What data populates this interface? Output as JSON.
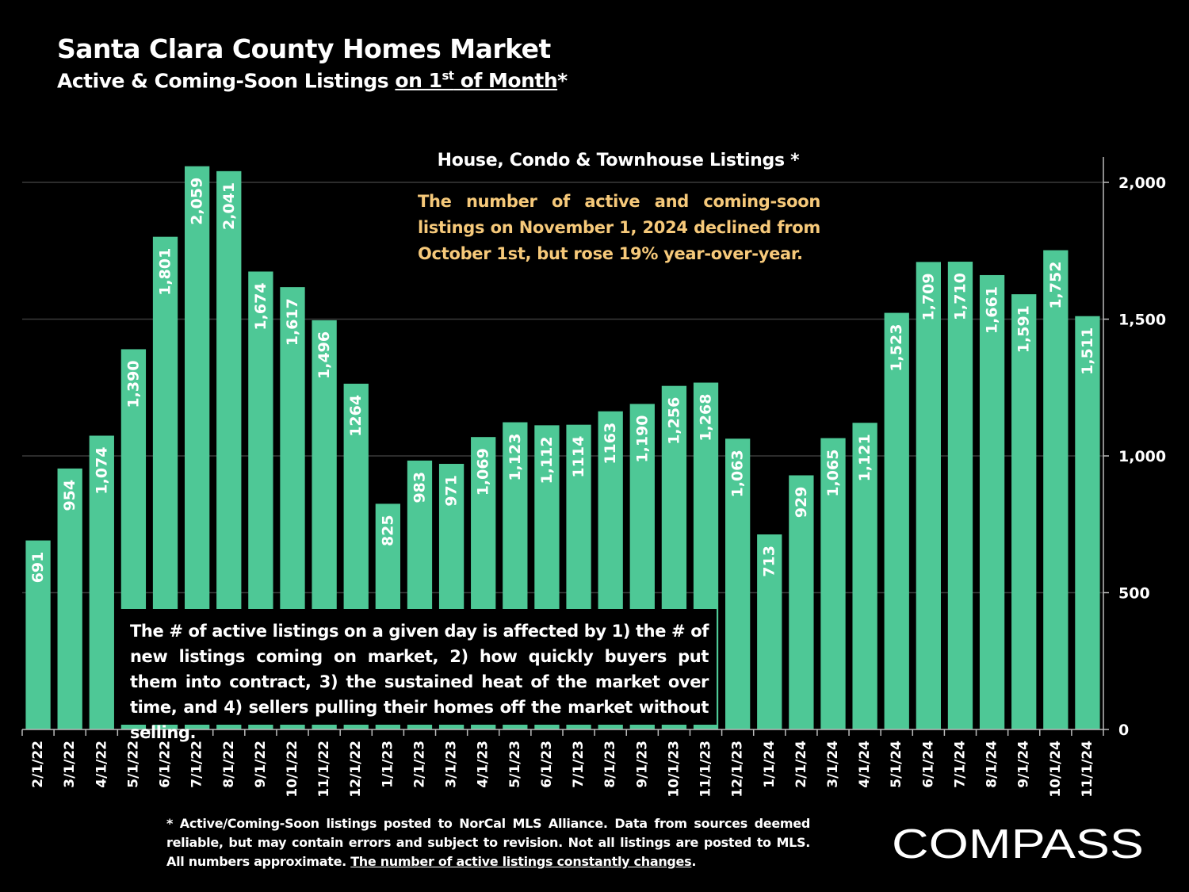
{
  "header": {
    "title": "Santa Clara County Homes Market",
    "subtitle_prefix": "Active & Coming-Soon Listings ",
    "subtitle_underlined_a": "on 1",
    "subtitle_sup": "st",
    "subtitle_underlined_b": " of Month",
    "subtitle_suffix": "*"
  },
  "annotations": {
    "top_note": "The number of active and coming-soon listings on November 1, 2024 declined from October 1st, but rose 19% year-over-year.",
    "box_note": "The # of active listings on a given day is affected by 1) the # of new listings coming on market, 2) how quickly buyers put them into contract, 3) the sustained heat of the market over time, and 4) sellers pulling their homes off the market without selling."
  },
  "footnote": {
    "text": "* Active/Coming-Soon listings posted to NorCal MLS Alliance.  Data from sources deemed reliable, but may contain errors and subject to revision.  Not all listings are posted to MLS. All numbers approximate. ",
    "underlined": "The number of active listings constantly changes",
    "end": "."
  },
  "logo": {
    "text": "COMPASS",
    "icon": "compass-o-icon"
  },
  "colors": {
    "bar": "#4ec896",
    "grid": "#3a3a3a",
    "background": "#000000",
    "note": "#f6c97a",
    "text": "#ffffff"
  },
  "chart_data": {
    "type": "bar",
    "title": "House, Condo & Townhouse Listings *",
    "xlabel": "",
    "ylabel": "",
    "ylim": [
      0,
      2000
    ],
    "y_ticks": [
      0,
      500,
      1000,
      1500,
      2000
    ],
    "y_tick_labels": [
      "0",
      "500",
      "1,000",
      "1,500",
      "2,000"
    ],
    "y_axis_side": "right",
    "grid": true,
    "categories": [
      "2/1/22",
      "3/1/22",
      "4/1/22",
      "5/1/22",
      "6/1/22",
      "7/1/22",
      "8/1/22",
      "9/1/22",
      "10/1/22",
      "11/1/22",
      "12/1/22",
      "1/1/23",
      "2/1/23",
      "3/1/23",
      "4/1/23",
      "5/1/23",
      "6/1/23",
      "7/1/23",
      "8/1/23",
      "9/1/23",
      "10/1/23",
      "11/1/23",
      "12/1/23",
      "1/1/24",
      "2/1/24",
      "3/1/24",
      "4/1/24",
      "5/1/24",
      "6/1/24",
      "7/1/24",
      "8/1/24",
      "9/1/24",
      "10/1/24",
      "11/1/24"
    ],
    "values": [
      691,
      954,
      1074,
      1390,
      1801,
      2059,
      2041,
      1674,
      1617,
      1496,
      1264,
      825,
      983,
      971,
      1069,
      1123,
      1112,
      1114,
      1163,
      1190,
      1256,
      1268,
      1063,
      713,
      929,
      1065,
      1121,
      1523,
      1709,
      1710,
      1661,
      1591,
      1752,
      1511
    ],
    "value_labels": [
      "691",
      "954",
      "1,074",
      "1,390",
      "1,801",
      "2,059",
      "2,041",
      "1,674",
      "1,617",
      "1,496",
      "1264",
      "825",
      "983",
      "971",
      "1,069",
      "1,123",
      "1,112",
      "1114",
      "1163",
      "1,190",
      "1,256",
      "1,268",
      "1,063",
      "713",
      "929",
      "1,065",
      "1,121",
      "1,523",
      "1,709",
      "1,710",
      "1,661",
      "1,591",
      "1,752",
      "1,511"
    ]
  }
}
